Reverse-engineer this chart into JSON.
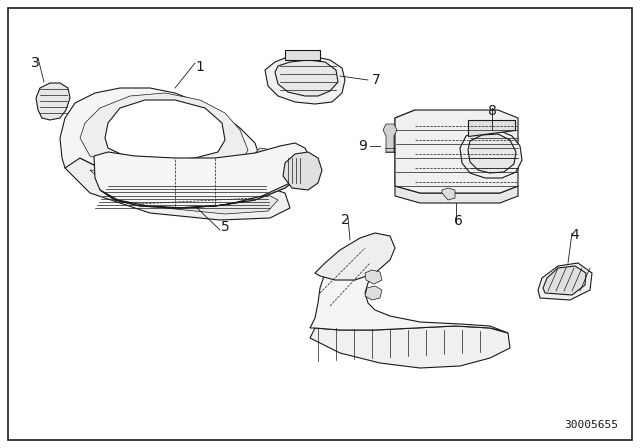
{
  "background_color": "#ffffff",
  "line_color": "#1a1a1a",
  "diagram_id": "30005655",
  "label_fontsize": 10,
  "diagram_id_fontsize": 8,
  "border_linewidth": 1.2,
  "part_linewidth": 0.8,
  "thin_linewidth": 0.5
}
